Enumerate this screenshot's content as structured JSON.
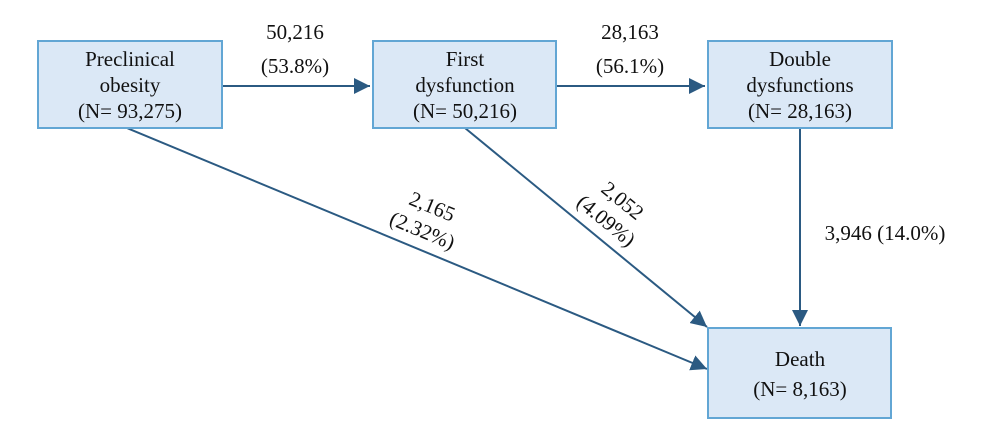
{
  "nodes": {
    "preclinical": {
      "line1": "Preclinical",
      "line2": "obesity",
      "line3": "(N= 93,275)"
    },
    "first": {
      "line1": "First",
      "line2": "dysfunction",
      "line3": "(N= 50,216)"
    },
    "double": {
      "line1": "Double",
      "line2": "dysfunctions",
      "line3": "(N= 28,163)"
    },
    "death": {
      "line1": "Death",
      "line2": "(N= 8,163)"
    }
  },
  "edges": {
    "pre_to_first": {
      "count": "50,216",
      "percent": "(53.8%)"
    },
    "first_to_double": {
      "count": "28,163",
      "percent": "(56.1%)"
    },
    "pre_to_death": {
      "count": "2,165",
      "percent": "(2.32%)"
    },
    "first_to_death": {
      "count": "2,052",
      "percent": "(4.09%)"
    },
    "double_to_death": {
      "label": "3,946 (14.0%)"
    }
  },
  "colors": {
    "node_fill": "#dbe8f6",
    "node_border": "#62a6d4",
    "arrow": "#2b5a82"
  }
}
